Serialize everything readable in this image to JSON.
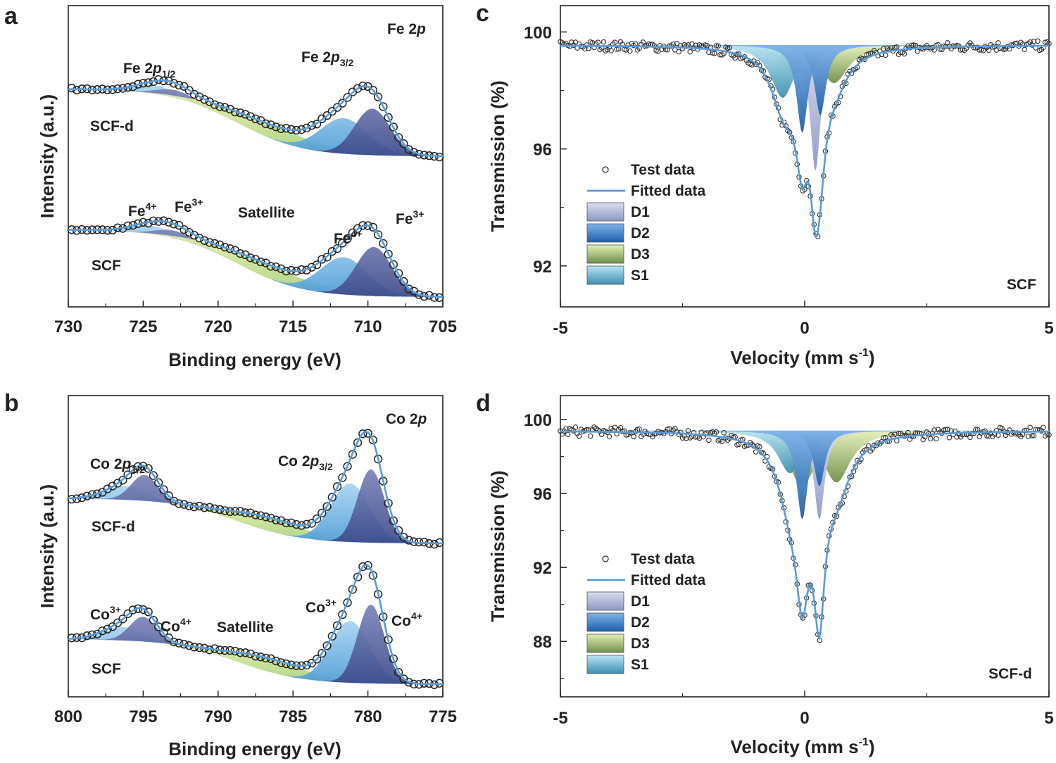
{
  "colors": {
    "fit": "#5b9bd5",
    "marker": "#333333",
    "D1": "#9aa4cc",
    "D2": "#2f6fb7",
    "D3": "#a6c56a",
    "S1": "#5fb0d8",
    "xps_dark": "#5d66a0",
    "xps_light": "#6fb2e0",
    "xps_sat": "#c6dd8a",
    "xps_low": "#4a8fcf"
  },
  "chart_data": [
    {
      "type": "line",
      "panel": "a",
      "element": "Fe 2p",
      "element_parts": [
        "Fe 2",
        "p"
      ],
      "xlabel": "Binding energy (eV)",
      "ylabel": "Intensity (a.u.)",
      "xlim": [
        730,
        705
      ],
      "xticks": [
        "730",
        "725",
        "720",
        "715",
        "710",
        "705"
      ],
      "peak_labels": {
        "p12": {
          "base": "Fe 2",
          "ital": "p",
          "sub": "1/2"
        },
        "p32": {
          "base": "Fe 2",
          "ital": "p",
          "sub": "3/2"
        }
      },
      "state_labels": {
        "fe4_left": {
          "base": "Fe",
          "sup": "4+"
        },
        "fe3_left": {
          "base": "Fe",
          "sup": "3+"
        },
        "satellite": "Satellite",
        "fe4_right": {
          "base": "Fe",
          "sup": "4+"
        },
        "fe3_right": {
          "base": "Fe",
          "sup": "3+"
        }
      },
      "series": [
        {
          "name": "SCF-d",
          "baseline_left": 0.8,
          "baseline_right": 0.0,
          "components": [
            {
              "type": "Fe4+",
              "center": 724.2,
              "height": 0.1,
              "width": 1.4
            },
            {
              "type": "Fe3+",
              "center": 722.8,
              "height": 0.09,
              "width": 1.2
            },
            {
              "type": "Satellite",
              "center": 716.5,
              "height": 0.16,
              "width": 3.2
            },
            {
              "type": "Fe4+",
              "center": 711.6,
              "height": 0.42,
              "width": 1.6
            },
            {
              "type": "Fe3+",
              "center": 709.7,
              "height": 0.55,
              "width": 1.2
            }
          ]
        },
        {
          "name": "SCF",
          "baseline_left": 0.8,
          "baseline_right": 0.0,
          "components": [
            {
              "type": "Fe4+",
              "center": 724.5,
              "height": 0.1,
              "width": 1.4
            },
            {
              "type": "Fe3+",
              "center": 722.9,
              "height": 0.09,
              "width": 1.2
            },
            {
              "type": "Satellite",
              "center": 716.8,
              "height": 0.16,
              "width": 3.2
            },
            {
              "type": "Fe4+",
              "center": 711.6,
              "height": 0.44,
              "width": 1.6
            },
            {
              "type": "Fe3+",
              "center": 709.6,
              "height": 0.58,
              "width": 1.2
            }
          ]
        }
      ]
    },
    {
      "type": "line",
      "panel": "b",
      "element": "Co 2p",
      "element_parts": [
        "Co 2",
        "p"
      ],
      "xlabel": "Binding energy (eV)",
      "ylabel": "Intensity (a.u.)",
      "xlim": [
        800,
        775
      ],
      "xticks": [
        "800",
        "795",
        "790",
        "785",
        "780",
        "775"
      ],
      "peak_labels": {
        "p12": {
          "base": "Co 2",
          "ital": "p",
          "sub": "1/2"
        },
        "p32": {
          "base": "Co 2",
          "ital": "p",
          "sub": "3/2"
        }
      },
      "state_labels": {
        "co3_left": {
          "base": "Co",
          "sup": "3+"
        },
        "co4_left": {
          "base": "Co",
          "sup": "4+"
        },
        "satellite": "Satellite",
        "co3_right": {
          "base": "Co",
          "sup": "3+"
        },
        "co4_right": {
          "base": "Co",
          "sup": "4+"
        }
      },
      "series": [
        {
          "name": "SCF-d",
          "baseline_left": 0.4,
          "baseline_right": 0.0,
          "components": [
            {
              "type": "Co3+",
              "center": 796.2,
              "height": 0.12,
              "width": 1.4
            },
            {
              "type": "Co4+",
              "center": 794.9,
              "height": 0.23,
              "width": 0.9
            },
            {
              "type": "Satellite",
              "center": 786.5,
              "height": 0.12,
              "width": 2.6
            },
            {
              "type": "Co3+",
              "center": 781.2,
              "height": 0.52,
              "width": 1.3
            },
            {
              "type": "Co4+",
              "center": 779.8,
              "height": 0.65,
              "width": 0.9
            }
          ]
        },
        {
          "name": "SCF",
          "baseline_left": 0.4,
          "baseline_right": 0.0,
          "components": [
            {
              "type": "Co3+",
              "center": 796.4,
              "height": 0.12,
              "width": 1.4
            },
            {
              "type": "Co4+",
              "center": 795.0,
              "height": 0.22,
              "width": 0.9
            },
            {
              "type": "Satellite",
              "center": 786.5,
              "height": 0.12,
              "width": 2.6
            },
            {
              "type": "Co3+",
              "center": 781.2,
              "height": 0.55,
              "width": 1.3
            },
            {
              "type": "Co4+",
              "center": 779.8,
              "height": 0.7,
              "width": 0.9
            }
          ]
        }
      ]
    },
    {
      "type": "scatter",
      "panel": "c",
      "sample": "SCF",
      "xlabel": "Velocity (mm s",
      "xlabel_sup": "-1",
      "xlabel_end": ")",
      "ylabel": "Transmission (%)",
      "xlim": [
        -5,
        5
      ],
      "ylim": [
        90.6,
        100.9
      ],
      "xticks": [
        "-5",
        "0",
        "5"
      ],
      "yticks": [
        100,
        96,
        92
      ],
      "baseline": 99.55,
      "legend": [
        "Test data",
        "Fitted data",
        "D1",
        "D2",
        "D3",
        "S1"
      ],
      "components": [
        {
          "name": "D1",
          "center": 0.22,
          "depth": 4.3,
          "width": 0.13
        },
        {
          "name": "D2",
          "center": -0.05,
          "depth": 3.0,
          "width": 0.14
        },
        {
          "name": "D2",
          "center": 0.32,
          "depth": 2.4,
          "width": 0.14
        },
        {
          "name": "D3",
          "center": -0.2,
          "depth": 1.0,
          "width": 0.35
        },
        {
          "name": "D3",
          "center": 0.6,
          "depth": 1.3,
          "width": 0.35
        },
        {
          "name": "S1",
          "center": -0.45,
          "depth": 1.8,
          "width": 0.3
        }
      ],
      "fit_min": [
        0.15,
        93.0
      ]
    },
    {
      "type": "scatter",
      "panel": "d",
      "sample": "SCF-d",
      "xlabel": "Velocity (mm s",
      "xlabel_sup": "-1",
      "xlabel_end": ")",
      "ylabel": "Transmission (%)",
      "xlim": [
        -5,
        5
      ],
      "ylim": [
        85.0,
        101.3
      ],
      "xticks": [
        "-5",
        "0",
        "5"
      ],
      "yticks": [
        100,
        96,
        92,
        88
      ],
      "baseline": 99.4,
      "legend": [
        "Test data",
        "Fitted data",
        "D1",
        "D2",
        "D3",
        "S1"
      ],
      "components": [
        {
          "name": "D1",
          "center": 0.3,
          "depth": 4.8,
          "width": 0.13
        },
        {
          "name": "D2",
          "center": -0.05,
          "depth": 4.8,
          "width": 0.14
        },
        {
          "name": "D2",
          "center": 0.3,
          "depth": 3.0,
          "width": 0.14
        },
        {
          "name": "D3",
          "center": -0.05,
          "depth": 3.0,
          "width": 0.35
        },
        {
          "name": "D3",
          "center": 0.65,
          "depth": 2.8,
          "width": 0.35
        },
        {
          "name": "S1",
          "center": -0.3,
          "depth": 2.3,
          "width": 0.3
        }
      ],
      "fit_min": [
        0.15,
        88.2
      ]
    }
  ]
}
